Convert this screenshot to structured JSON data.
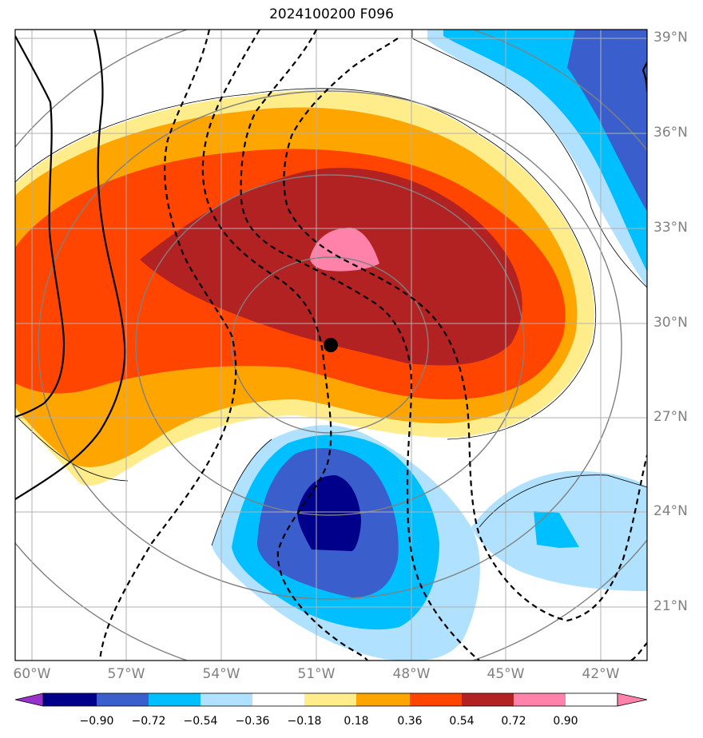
{
  "title": "2024100200 F096",
  "lat_ticks": [
    "39°N",
    "36°N",
    "33°N",
    "30°N",
    "27°N",
    "24°N",
    "21°N"
  ],
  "lon_ticks": [
    "60°W",
    "57°W",
    "54°W",
    "51°W",
    "48°W",
    "45°W",
    "42°W"
  ],
  "colorbar": {
    "labels": [
      "−0.90",
      "−0.72",
      "−0.54",
      "−0.36",
      "−0.18",
      "0.18",
      "0.36",
      "0.54",
      "0.72",
      "0.90"
    ],
    "colors": [
      "#9932cc",
      "#00008b",
      "#3a5fcd",
      "#00bfff",
      "#b0e2ff",
      "#ffffff",
      "#ffec8b",
      "#ffa500",
      "#ff4500",
      "#b22222",
      "#ff82ab"
    ]
  },
  "storm_center": {
    "lat": 29.3,
    "lon": -50.5
  },
  "fill_colors": {
    "level_0_18": "#ffec8b",
    "level_0_36": "#ffa500",
    "level_0_54": "#ff4500",
    "level_0_72": "#b22222",
    "level_0_90": "#ff82ab",
    "level_m0_18": "#b0e2ff",
    "level_m0_36": "#00bfff",
    "level_m0_54": "#3a5fcd",
    "level_m0_72": "#00008b"
  }
}
